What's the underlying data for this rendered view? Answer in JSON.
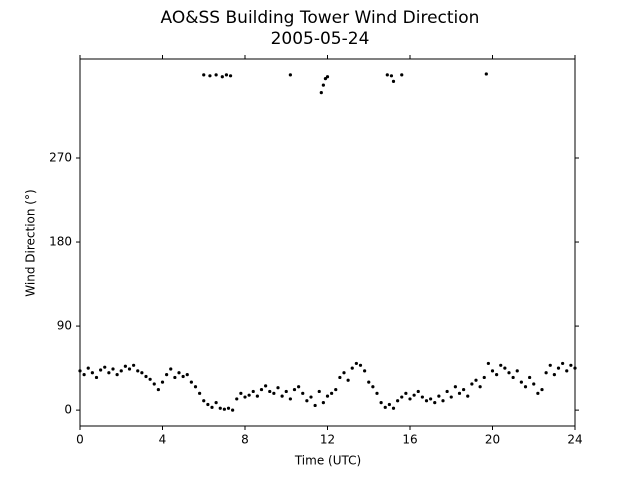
{
  "chart_data": {
    "type": "scatter",
    "title": "AO&SS Building Tower Wind Direction",
    "subtitle": "2005-05-24",
    "x_label": "Time (UTC)",
    "y_label": "Wind Direction (°)",
    "color": "#000000",
    "xlim": [
      0,
      24
    ],
    "xticks": [
      0,
      4,
      8,
      12,
      16,
      20,
      24
    ],
    "ylim": [
      -17,
      376
    ],
    "yticks": [
      0,
      90,
      180,
      270
    ],
    "grid": false,
    "x": [
      0.0,
      0.2,
      0.4,
      0.6,
      0.8,
      1.0,
      1.2,
      1.4,
      1.6,
      1.8,
      2.0,
      2.2,
      2.4,
      2.6,
      2.8,
      3.0,
      3.2,
      3.4,
      3.6,
      3.8,
      4.0,
      4.2,
      4.4,
      4.6,
      4.8,
      5.0,
      5.2,
      5.4,
      5.6,
      5.8,
      6.0,
      6.2,
      6.4,
      6.6,
      6.8,
      7.0,
      7.2,
      7.4,
      7.6,
      7.8,
      8.0,
      8.2,
      8.4,
      8.6,
      8.8,
      9.0,
      9.2,
      9.4,
      9.6,
      9.8,
      10.0,
      10.2,
      10.4,
      10.6,
      10.8,
      11.0,
      11.2,
      11.4,
      11.6,
      11.8,
      12.0,
      12.2,
      12.4,
      12.6,
      12.8,
      13.0,
      13.2,
      13.4,
      13.6,
      13.8,
      14.0,
      14.2,
      14.4,
      14.6,
      14.8,
      15.0,
      15.2,
      15.4,
      15.6,
      15.8,
      16.0,
      16.2,
      16.4,
      16.6,
      16.8,
      17.0,
      17.2,
      17.4,
      17.6,
      17.8,
      18.0,
      18.2,
      18.4,
      18.6,
      18.8,
      19.0,
      19.2,
      19.4,
      19.6,
      19.8,
      20.0,
      20.2,
      20.4,
      20.6,
      20.8,
      21.0,
      21.2,
      21.4,
      21.6,
      21.8,
      22.0,
      22.2,
      22.4,
      22.6,
      22.8,
      23.0,
      23.2,
      23.4,
      23.6,
      23.8,
      24.0,
      6.0,
      6.3,
      6.6,
      6.9,
      7.1,
      7.3,
      10.2,
      11.7,
      11.8,
      11.9,
      12.0,
      14.9,
      15.1,
      15.2,
      15.6,
      19.7
    ],
    "values": [
      42,
      38,
      45,
      40,
      35,
      43,
      46,
      40,
      44,
      38,
      42,
      47,
      44,
      48,
      42,
      40,
      36,
      33,
      28,
      22,
      30,
      38,
      44,
      35,
      40,
      36,
      38,
      30,
      25,
      18,
      10,
      6,
      3,
      8,
      2,
      1,
      2,
      0,
      12,
      18,
      14,
      16,
      20,
      15,
      22,
      26,
      20,
      18,
      24,
      15,
      20,
      12,
      22,
      25,
      18,
      10,
      14,
      5,
      20,
      8,
      15,
      18,
      22,
      35,
      40,
      32,
      45,
      50,
      48,
      42,
      30,
      25,
      18,
      8,
      3,
      6,
      2,
      10,
      14,
      18,
      12,
      16,
      20,
      14,
      10,
      12,
      8,
      15,
      10,
      20,
      14,
      25,
      18,
      22,
      15,
      28,
      32,
      25,
      35,
      50,
      42,
      38,
      48,
      45,
      40,
      35,
      42,
      30,
      25,
      35,
      28,
      18,
      22,
      40,
      48,
      38,
      45,
      50,
      42,
      48,
      45,
      359,
      358,
      359,
      357,
      359,
      358,
      359,
      340,
      348,
      355,
      357,
      359,
      358,
      352,
      359,
      360
    ]
  }
}
